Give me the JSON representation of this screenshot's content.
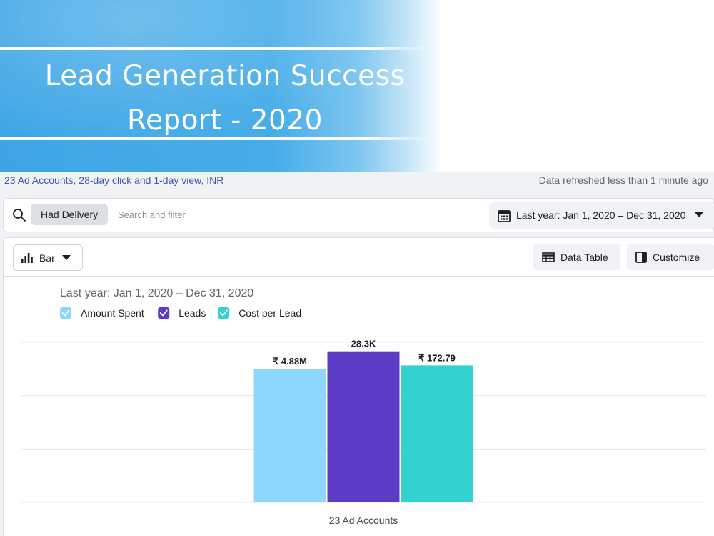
{
  "banner": {
    "title_line1": "Lead Generation Success",
    "title_line2": "Report - 2020"
  },
  "report": {
    "scope": "23 Ad Accounts, 28-day click and 1-day view, INR",
    "refresh_status": "Data refreshed less than 1 minute ago"
  },
  "filters": {
    "chip_label": "Had Delivery",
    "search_placeholder": "Search and filter",
    "date_range": "Last year: Jan 1, 2020 – Dec 31, 2020"
  },
  "toolbar": {
    "chart_type_label": "Bar",
    "data_table_label": "Data Table",
    "customize_label": "Customize"
  },
  "colors": {
    "amount_spent": "#8dd8fc",
    "leads": "#5b3cc4",
    "cost_per_lead": "#33d1d0",
    "grid": "#e4e6eb"
  },
  "chart_data": {
    "type": "bar",
    "subtitle": "Last year: Jan 1, 2020 – Dec 31, 2020",
    "categories": [
      "23 Ad Accounts"
    ],
    "legend_position": "top-left",
    "grid": true,
    "independent_scales": true,
    "series": [
      {
        "name": "Amount Spent",
        "values": [
          4880000
        ],
        "label": "₹ 4.88M",
        "axis_max": 5850000,
        "color": "#8dd8fc"
      },
      {
        "name": "Leads",
        "values": [
          28300
        ],
        "label": "28.3K",
        "axis_max": 30000,
        "color": "#5b3cc4"
      },
      {
        "name": "Cost per Lead",
        "values": [
          172.79
        ],
        "label": "₹ 172.79",
        "axis_max": 202,
        "color": "#33d1d0"
      }
    ]
  }
}
